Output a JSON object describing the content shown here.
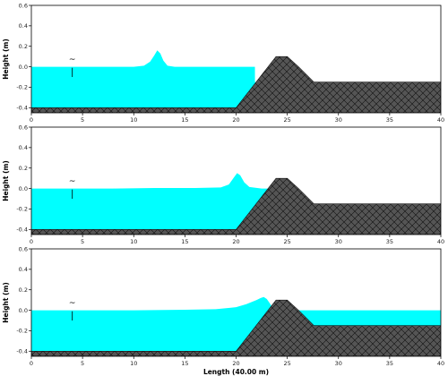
{
  "colors": {
    "water": "#00ffff",
    "ground": "#555555",
    "hatch": "#111111",
    "axis": "#000000"
  },
  "chart_data": [
    {
      "type": "area",
      "ylabel": "Height (m)",
      "xlabel": "",
      "xlim": [
        0,
        40
      ],
      "ylim": [
        -0.45,
        0.6
      ],
      "xticks": [
        "0",
        "5",
        "10",
        "15",
        "20",
        "25",
        "30",
        "35",
        "40"
      ],
      "yticks": [
        "-0.4",
        "-0.2",
        "0.0",
        "0.2",
        "0.4",
        "0.6"
      ],
      "marker_glyph": "~",
      "gauge_x": 4.0,
      "water": {
        "x": [
          0,
          10,
          11,
          11.6,
          12.0,
          12.3,
          12.6,
          12.9,
          13.3,
          14,
          15,
          21.84,
          21.84,
          27.58,
          40
        ],
        "y": [
          0.0,
          0.0,
          0.01,
          0.05,
          0.11,
          0.16,
          0.13,
          0.06,
          0.01,
          0.0,
          0.0,
          0.0,
          -0.15,
          -0.15,
          -0.15
        ]
      },
      "bed": {
        "x": [
          0,
          20,
          23.9,
          25.0,
          26.1,
          27.6,
          40
        ],
        "y": [
          -0.4,
          -0.4,
          0.1,
          0.1,
          0.0,
          -0.15,
          -0.15
        ]
      }
    },
    {
      "type": "area",
      "ylabel": "Height (m)",
      "xlabel": "",
      "xlim": [
        0,
        40
      ],
      "ylim": [
        -0.45,
        0.6
      ],
      "xticks": [
        "0",
        "5",
        "10",
        "15",
        "20",
        "25",
        "30",
        "35",
        "40"
      ],
      "yticks": [
        "-0.4",
        "-0.2",
        "0.0",
        "0.2",
        "0.4",
        "0.6"
      ],
      "marker_glyph": "~",
      "gauge_x": 4.0,
      "water": {
        "x": [
          0,
          8,
          12,
          16,
          18.5,
          19.3,
          19.8,
          20.1,
          20.4,
          20.8,
          21.3,
          22.5,
          23.35,
          23.35,
          27.0,
          27.58,
          40
        ],
        "y": [
          0.0,
          0.0,
          0.005,
          0.005,
          0.01,
          0.04,
          0.11,
          0.15,
          0.13,
          0.06,
          0.015,
          0.0,
          0.0,
          -0.15,
          -0.15,
          -0.15,
          -0.15
        ]
      },
      "bed": {
        "x": [
          0,
          20,
          23.9,
          25.0,
          26.1,
          27.6,
          40
        ],
        "y": [
          -0.4,
          -0.4,
          0.1,
          0.1,
          0.0,
          -0.15,
          -0.15
        ]
      }
    },
    {
      "type": "area",
      "ylabel": "Height (m)",
      "xlabel": "Length (40.00 m)",
      "xlim": [
        0,
        40
      ],
      "ylim": [
        -0.45,
        0.6
      ],
      "xticks": [
        "0",
        "5",
        "10",
        "15",
        "20",
        "25",
        "30",
        "35",
        "40"
      ],
      "yticks": [
        "-0.4",
        "-0.2",
        "0.0",
        "0.2",
        "0.4",
        "0.6"
      ],
      "marker_glyph": "~",
      "gauge_x": 4.0,
      "water": {
        "x": [
          0,
          10,
          15,
          18,
          20,
          21,
          22,
          22.4,
          22.7,
          23.0,
          23.35,
          23.6,
          24.1,
          40
        ],
        "y": [
          0.0,
          0.0,
          0.005,
          0.01,
          0.03,
          0.06,
          0.1,
          0.12,
          0.13,
          0.11,
          0.06,
          0.02,
          0.0,
          0.0
        ]
      },
      "bed": {
        "x": [
          0,
          20,
          23.9,
          25.0,
          26.1,
          27.6,
          40
        ],
        "y": [
          -0.4,
          -0.4,
          0.1,
          0.1,
          0.0,
          -0.15,
          -0.15
        ]
      }
    }
  ]
}
